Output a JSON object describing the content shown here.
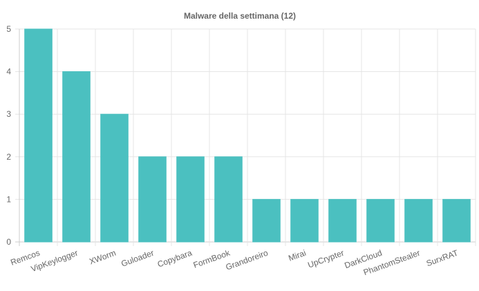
{
  "chart_data": {
    "type": "bar",
    "title": "Malware della settimana (12)",
    "xlabel": "",
    "ylabel": "",
    "categories": [
      "Remcos",
      "VipKeylogger",
      "XWorm",
      "Guloader",
      "Copybara",
      "FormBook",
      "Grandoreiro",
      "Mirai",
      "UpCrypter",
      "DarkCloud",
      "PhantomStealer",
      "SurxRAT"
    ],
    "values": [
      5,
      4,
      3,
      2,
      2,
      2,
      1,
      1,
      1,
      1,
      1,
      1
    ],
    "ylim": [
      0,
      5
    ],
    "yticks": [
      0,
      1,
      2,
      3,
      4,
      5
    ],
    "grid": true,
    "legend": "none",
    "colors": {
      "bar_fill": "#4bc0c0",
      "bar_border": "#4bc0c0",
      "grid": "#e5e5e5",
      "axis": "#cccccc",
      "text": "#666666"
    }
  }
}
